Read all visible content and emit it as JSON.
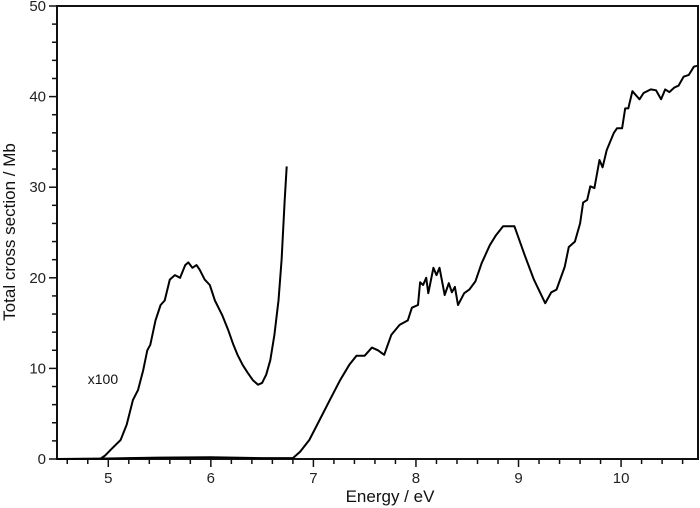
{
  "chart_data": {
    "type": "line",
    "title": "",
    "xlabel": "Energy / eV",
    "ylabel": "Total cross section / Mb",
    "xlim": [
      4.5,
      10.75
    ],
    "ylim": [
      0,
      50
    ],
    "x_ticks": [
      5,
      6,
      7,
      8,
      9,
      10
    ],
    "y_ticks": [
      0,
      10,
      20,
      30,
      40,
      50
    ],
    "x_minor_step": 0.2,
    "y_minor_step": 2,
    "grid": false,
    "line_color": "#000000",
    "annotations": [
      {
        "text": "x100",
        "x": 4.8,
        "y": 8.3
      }
    ],
    "series": [
      {
        "label": "main",
        "x": [
          4.5,
          5.0,
          5.5,
          6.0,
          6.5,
          6.8,
          6.87,
          6.96,
          7.06,
          7.16,
          7.26,
          7.35,
          7.42,
          7.5,
          7.57,
          7.63,
          7.69,
          7.76,
          7.84,
          7.92,
          7.96,
          8.02,
          8.04,
          8.07,
          8.1,
          8.12,
          8.17,
          8.2,
          8.23,
          8.28,
          8.32,
          8.35,
          8.38,
          8.41,
          8.47,
          8.52,
          8.58,
          8.64,
          8.72,
          8.78,
          8.85,
          8.96,
          9.06,
          9.15,
          9.26,
          9.32,
          9.37,
          9.45,
          9.49,
          9.55,
          9.6,
          9.63,
          9.67,
          9.7,
          9.74,
          9.79,
          9.82,
          9.86,
          9.93,
          9.96,
          10.01,
          10.04,
          10.07,
          10.11,
          10.18,
          10.22,
          10.29,
          10.34,
          10.39,
          10.43,
          10.47,
          10.52,
          10.56,
          10.61,
          10.66,
          10.71,
          10.74
        ],
        "y": [
          0,
          0.05,
          0.15,
          0.2,
          0.1,
          0.1,
          0.8,
          2.1,
          4.3,
          6.5,
          8.7,
          10.4,
          11.4,
          11.4,
          12.3,
          12.0,
          11.5,
          13.7,
          14.8,
          15.3,
          16.7,
          17.0,
          19.5,
          19.2,
          20.0,
          18.3,
          21.1,
          20.3,
          21.1,
          18.1,
          19.4,
          18.4,
          19.0,
          17.0,
          18.3,
          18.7,
          19.6,
          21.6,
          23.6,
          24.7,
          25.7,
          25.7,
          22.5,
          19.8,
          17.2,
          18.4,
          18.7,
          21.2,
          23.4,
          24.0,
          26.0,
          28.3,
          28.6,
          30.1,
          29.9,
          33.0,
          32.2,
          34.1,
          36.0,
          36.5,
          36.5,
          38.7,
          38.7,
          40.6,
          39.7,
          40.4,
          40.8,
          40.7,
          39.7,
          40.8,
          40.5,
          41.0,
          41.2,
          42.2,
          42.4,
          43.3,
          43.4
        ]
      },
      {
        "label": "x100",
        "x": [
          4.92,
          4.97,
          5.04,
          5.12,
          5.18,
          5.24,
          5.29,
          5.34,
          5.38,
          5.41,
          5.46,
          5.51,
          5.55,
          5.6,
          5.65,
          5.7,
          5.75,
          5.78,
          5.82,
          5.86,
          5.89,
          5.94,
          5.99,
          6.04,
          6.11,
          6.17,
          6.22,
          6.26,
          6.31,
          6.36,
          6.41,
          6.46,
          6.5,
          6.54,
          6.58,
          6.62,
          6.66,
          6.69,
          6.72,
          6.74
        ],
        "y": [
          0,
          0.4,
          1.2,
          2.1,
          3.8,
          6.5,
          7.6,
          9.8,
          12.0,
          12.6,
          15.3,
          17.0,
          17.5,
          19.8,
          20.3,
          20.0,
          21.4,
          21.7,
          21.1,
          21.4,
          20.9,
          19.8,
          19.2,
          17.5,
          15.9,
          14.2,
          12.6,
          11.5,
          10.4,
          9.5,
          8.7,
          8.2,
          8.4,
          9.3,
          10.9,
          13.7,
          17.5,
          22.0,
          28.6,
          32.3
        ]
      }
    ]
  }
}
